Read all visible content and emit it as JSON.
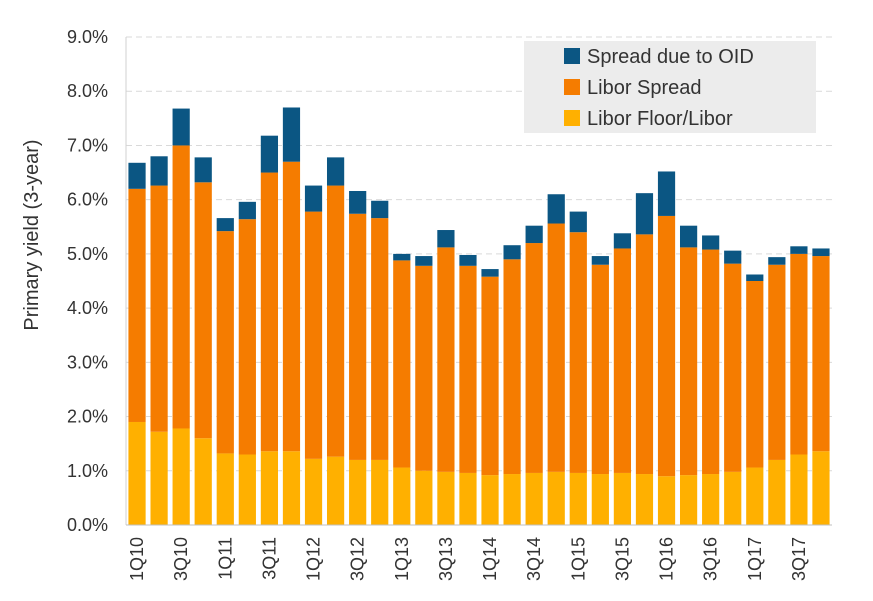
{
  "chart_data": {
    "type": "bar",
    "stacked": true,
    "ylabel": "Primary yield (3-year)",
    "ylim": [
      0,
      9
    ],
    "y_tick_labels": [
      "0.0%",
      "1.0%",
      "2.0%",
      "3.0%",
      "4.0%",
      "5.0%",
      "6.0%",
      "7.0%",
      "8.0%",
      "9.0%"
    ],
    "categories": [
      "1Q10",
      "2Q10",
      "3Q10",
      "4Q10",
      "1Q11",
      "2Q11",
      "3Q11",
      "4Q11",
      "1Q12",
      "2Q12",
      "3Q12",
      "4Q12",
      "1Q13",
      "2Q13",
      "3Q13",
      "4Q13",
      "1Q14",
      "2Q14",
      "3Q14",
      "4Q14",
      "1Q15",
      "2Q15",
      "3Q15",
      "4Q15",
      "1Q16",
      "2Q16",
      "3Q16",
      "4Q16",
      "1Q17",
      "2Q17",
      "3Q17",
      "4Q17"
    ],
    "x_tick_labels": [
      "1Q10",
      "3Q10",
      "1Q11",
      "3Q11",
      "1Q12",
      "3Q12",
      "1Q13",
      "3Q13",
      "1Q14",
      "3Q14",
      "1Q15",
      "3Q15",
      "1Q16",
      "3Q16",
      "1Q17",
      "3Q17"
    ],
    "grid": "horizontal dashed",
    "legend_position": "top-right",
    "series": [
      {
        "name": "Libor Floor/Libor",
        "color": "#FFB000",
        "values": [
          1.9,
          1.72,
          1.78,
          1.6,
          1.32,
          1.3,
          1.36,
          1.36,
          1.22,
          1.26,
          1.2,
          1.2,
          1.06,
          1.0,
          0.98,
          0.96,
          0.92,
          0.94,
          0.96,
          0.98,
          0.96,
          0.94,
          0.96,
          0.94,
          0.9,
          0.92,
          0.94,
          0.98,
          1.06,
          1.2,
          1.3,
          1.36
        ]
      },
      {
        "name": "Libor Spread",
        "color": "#F57C00",
        "values": [
          4.3,
          4.54,
          5.22,
          4.72,
          4.1,
          4.34,
          5.14,
          5.34,
          4.56,
          5.0,
          4.54,
          4.46,
          3.82,
          3.78,
          4.14,
          3.82,
          3.66,
          3.96,
          4.24,
          4.58,
          4.44,
          3.86,
          4.14,
          4.42,
          4.8,
          4.2,
          4.14,
          3.84,
          3.44,
          3.6,
          3.7,
          3.6
        ]
      },
      {
        "name": "Spread due to OID",
        "color": "#0B5683",
        "values": [
          0.48,
          0.54,
          0.68,
          0.46,
          0.24,
          0.32,
          0.68,
          1.0,
          0.48,
          0.52,
          0.42,
          0.32,
          0.12,
          0.18,
          0.32,
          0.2,
          0.14,
          0.26,
          0.32,
          0.54,
          0.38,
          0.16,
          0.28,
          0.76,
          0.82,
          0.4,
          0.26,
          0.24,
          0.12,
          0.14,
          0.14,
          0.14
        ]
      }
    ]
  }
}
